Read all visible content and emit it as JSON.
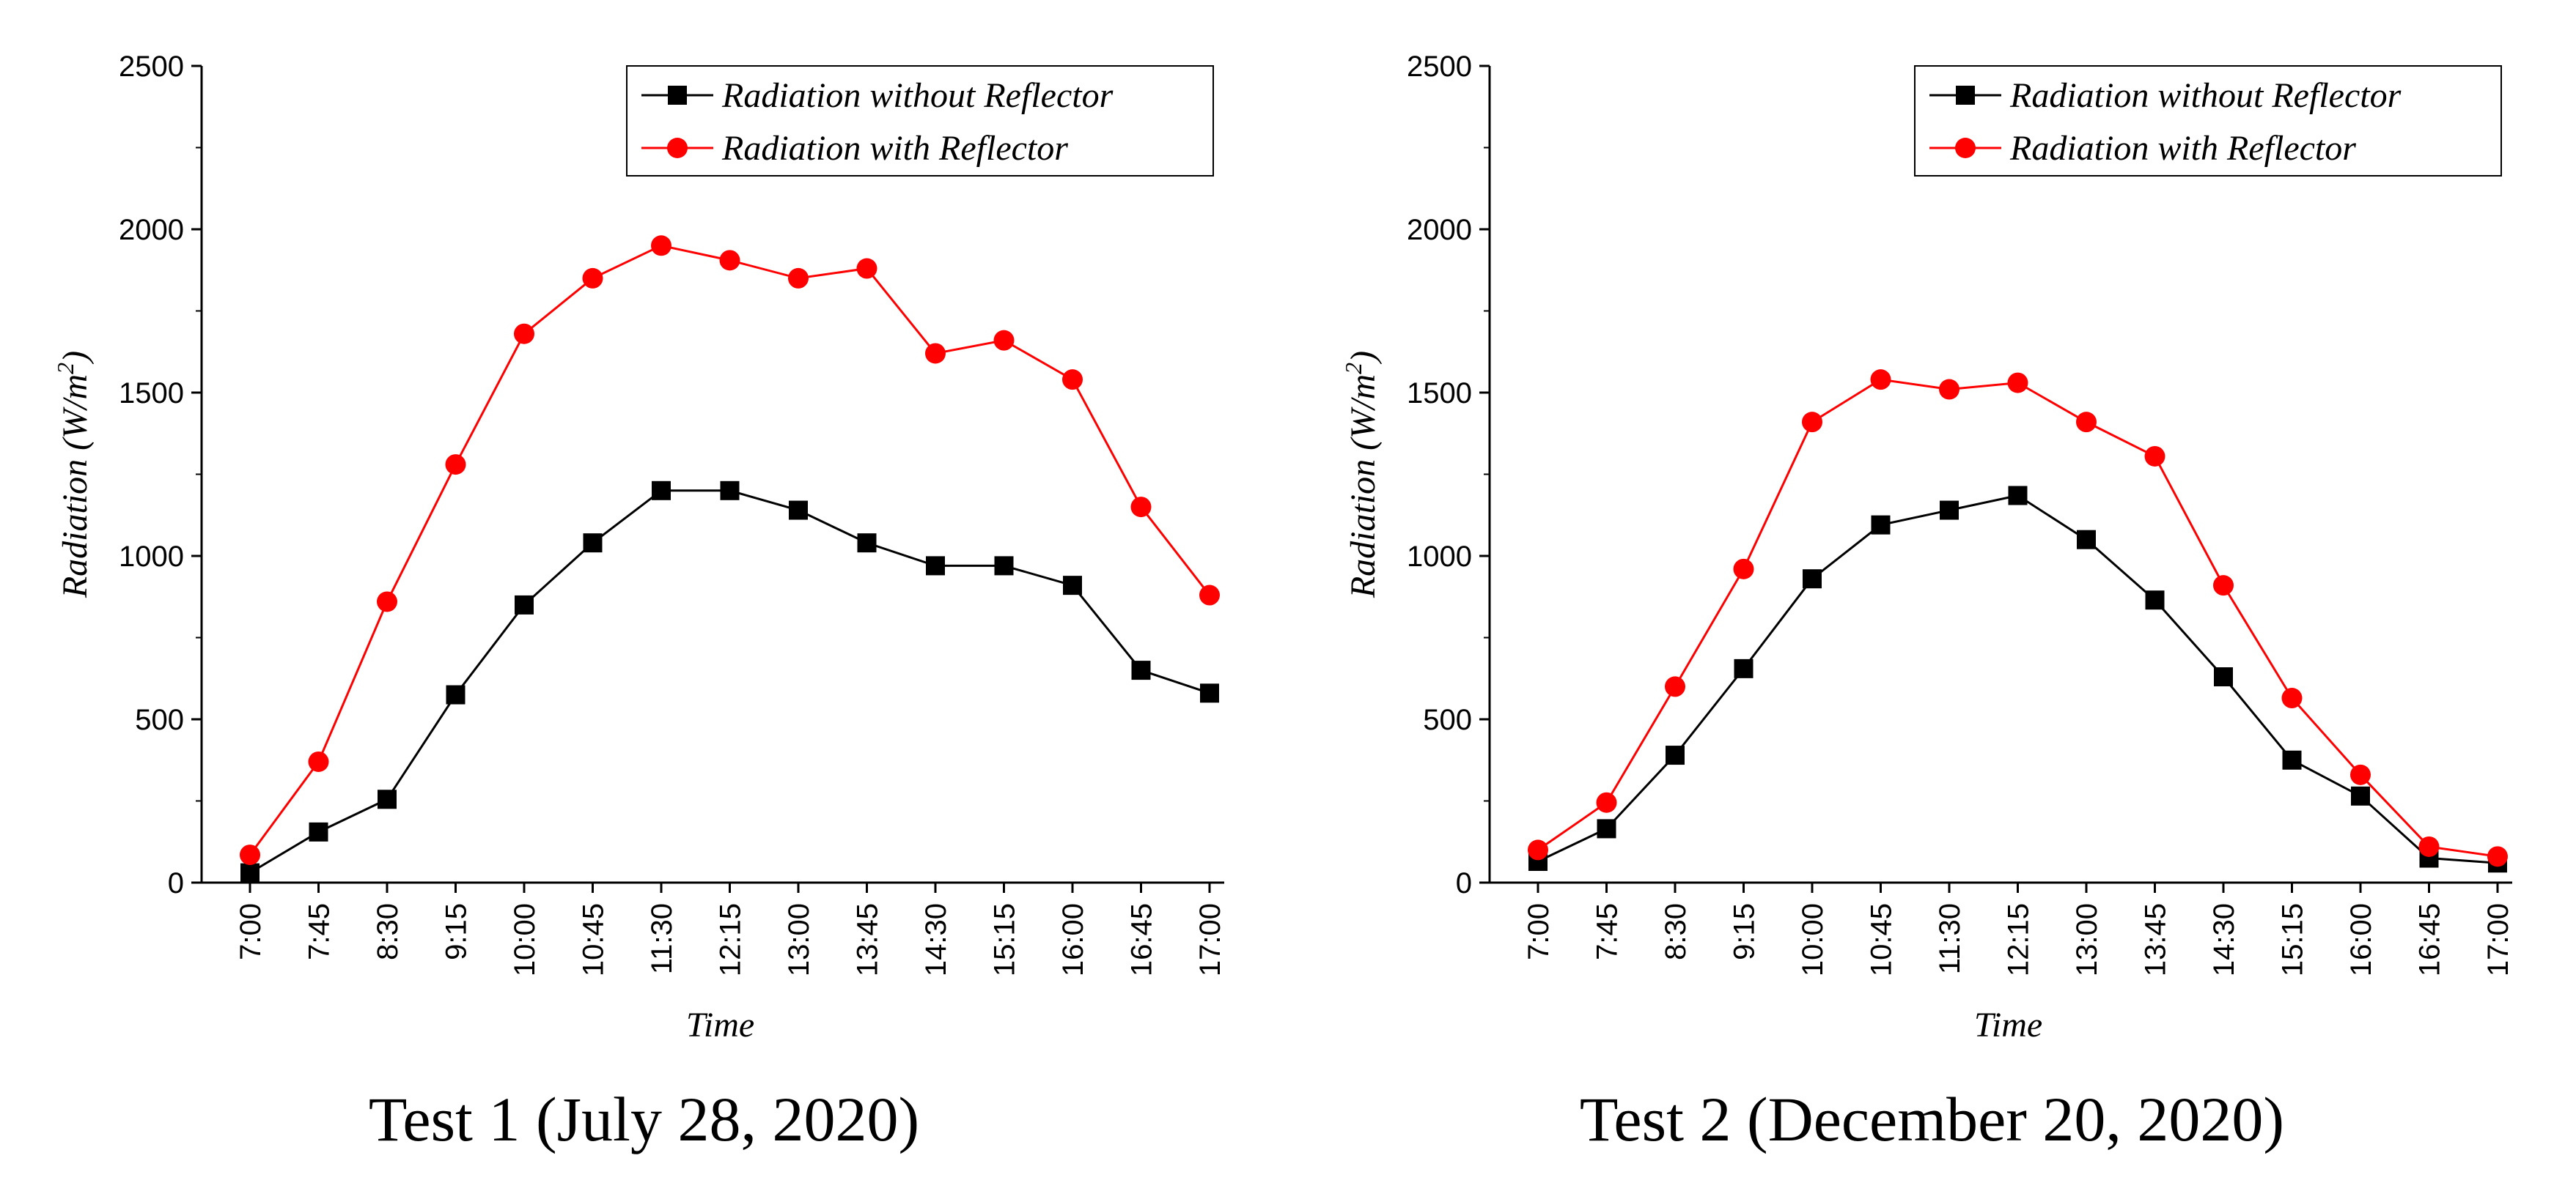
{
  "chart_data": [
    {
      "type": "line",
      "caption": "Test 1 (July 28, 2020)",
      "xlabel": "Time",
      "ylabel": "Radiation (W/m",
      "ylabel_sup": "2",
      "ylabel_end": ")",
      "ylim": [
        0,
        2500
      ],
      "yticks": [
        0,
        500,
        1000,
        1500,
        2000,
        2500
      ],
      "categories": [
        "7:00",
        "7:45",
        "8:30",
        "9:15",
        "10:00",
        "10:45",
        "11:30",
        "12:15",
        "13:00",
        "13:45",
        "14:30",
        "15:15",
        "16:00",
        "16:45",
        "17:00"
      ],
      "series": [
        {
          "name": "Radiation without Reflector",
          "color": "#000000",
          "marker": "square",
          "values": [
            30,
            155,
            255,
            575,
            850,
            1040,
            1200,
            1200,
            1140,
            1040,
            970,
            970,
            910,
            650,
            580
          ]
        },
        {
          "name": "Radiation with Reflector",
          "color": "#ff0000",
          "marker": "circle",
          "values": [
            85,
            370,
            860,
            1280,
            1680,
            1850,
            1950,
            1905,
            1850,
            1880,
            1620,
            1660,
            1540,
            1150,
            880
          ]
        }
      ]
    },
    {
      "type": "line",
      "caption": "Test 2 (December 20, 2020)",
      "xlabel": "Time",
      "ylabel": "Radiation (W/m",
      "ylabel_sup": "2",
      "ylabel_end": ")",
      "ylim": [
        0,
        2500
      ],
      "yticks": [
        0,
        500,
        1000,
        1500,
        2000,
        2500
      ],
      "categories": [
        "7:00",
        "7:45",
        "8:30",
        "9:15",
        "10:00",
        "10:45",
        "11:30",
        "12:15",
        "13:00",
        "13:45",
        "14:30",
        "15:15",
        "16:00",
        "16:45",
        "17:00"
      ],
      "series": [
        {
          "name": "Radiation without Reflector",
          "color": "#000000",
          "marker": "square",
          "values": [
            65,
            165,
            390,
            655,
            930,
            1095,
            1140,
            1185,
            1050,
            865,
            630,
            375,
            265,
            75,
            60
          ]
        },
        {
          "name": "Radiation with Reflector",
          "color": "#ff0000",
          "marker": "circle",
          "values": [
            100,
            245,
            600,
            960,
            1410,
            1540,
            1510,
            1530,
            1410,
            1305,
            910,
            565,
            330,
            110,
            80
          ]
        }
      ]
    }
  ]
}
